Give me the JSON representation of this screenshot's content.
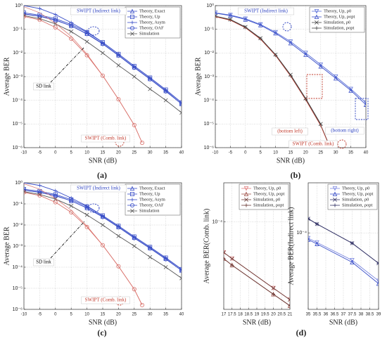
{
  "chart_data": [
    {
      "type": "line",
      "caption": "(a)",
      "xlabel": "SNR (dB)",
      "ylabel": "Average BER",
      "ylog": true,
      "grid": true,
      "legend": "upper right",
      "xlim": [
        -10,
        40
      ],
      "xticks": [
        -10,
        -5,
        0,
        5,
        10,
        15,
        20,
        25,
        30,
        35,
        40
      ],
      "ylim": [
        1e-06,
        1
      ],
      "yticks": [
        {
          "value": 1,
          "label": "10⁰"
        },
        {
          "value": 0.1,
          "label": "10⁻¹"
        },
        {
          "value": 0.01,
          "label": "10⁻²"
        },
        {
          "value": 0.001,
          "label": "10⁻³"
        },
        {
          "value": 0.0001,
          "label": "10⁻⁴"
        },
        {
          "value": 1e-05,
          "label": "10⁻⁵"
        },
        {
          "value": 1e-06,
          "label": "10⁻⁶"
        }
      ],
      "annotations": [
        {
          "text": "SWIPT (Indirect link)",
          "color": "#2a3fbf"
        },
        {
          "text": "SD link",
          "color": "#000000"
        },
        {
          "text": "SWIPT (Comb. link)",
          "color": "#c0392b"
        }
      ],
      "series": [
        {
          "name": "Theory, Exact",
          "color": "#3a4fc8",
          "marker": "triangle-up",
          "x": [
            -10,
            -5,
            0,
            5,
            10,
            15,
            20,
            25,
            30,
            35,
            40
          ],
          "values": [
            0.45,
            0.36,
            0.25,
            0.14,
            0.065,
            0.025,
            0.008,
            0.0025,
            0.0008,
            0.00025,
            7e-05
          ]
        },
        {
          "name": "Theory, Up",
          "color": "#3a4fc8",
          "marker": "square",
          "x": [
            -10,
            -5,
            0,
            5,
            10,
            15,
            20,
            25,
            30,
            35,
            40
          ],
          "values": [
            0.5,
            0.4,
            0.28,
            0.16,
            0.075,
            0.028,
            0.009,
            0.0028,
            0.0009,
            0.00028,
            8e-05
          ]
        },
        {
          "name": "Theory, Asym",
          "color": "#3a4fc8",
          "marker": "plus",
          "x": [
            -10,
            -5,
            0,
            5,
            10,
            15,
            20,
            25,
            30,
            35,
            40
          ],
          "values": [
            1,
            0.75,
            0.42,
            0.19,
            0.08,
            0.028,
            0.009,
            0.0028,
            0.0009,
            0.00028,
            8e-05
          ]
        },
        {
          "name": "Theory, OAF",
          "color": "#3a4fc8",
          "marker": "circle",
          "x": [
            -10,
            -5,
            0,
            5,
            10,
            15,
            20,
            25,
            30,
            35,
            40
          ],
          "values": [
            0.44,
            0.35,
            0.24,
            0.14,
            0.063,
            0.024,
            0.0078,
            0.0024,
            0.00078,
            0.00024,
            7e-05
          ]
        },
        {
          "name": "Simulation",
          "color": "#555555",
          "marker": "x",
          "x": [
            -10,
            -5,
            0,
            5,
            10,
            15,
            20,
            25,
            30,
            35,
            40
          ],
          "values": [
            0.38,
            0.28,
            0.17,
            0.08,
            0.03,
            0.01,
            0.003,
            0.001,
            0.0003,
            0.0001,
            3e-05
          ]
        },
        {
          "color": "#d9706a",
          "marker": "circle",
          "x": [
            -10,
            -5,
            0,
            5,
            10,
            15,
            20,
            25,
            27.5
          ],
          "values": [
            0.35,
            0.25,
            0.12,
            0.04,
            0.008,
            0.0011,
            0.00011,
            9e-06,
            1.6e-06
          ]
        },
        {
          "color": "#d9706a",
          "marker": "none",
          "x": [
            -10,
            -5,
            0,
            5,
            10,
            15,
            20,
            25,
            27.5
          ],
          "values": [
            0.9,
            0.5,
            0.18,
            0.05,
            0.009,
            0.0011,
            0.00011,
            9e-06,
            1.6e-06
          ]
        }
      ]
    },
    {
      "type": "line",
      "caption": "(b)",
      "xlabel": "SNR (dB)",
      "ylabel": "Average BER",
      "ylog": true,
      "grid": true,
      "legend": "upper right",
      "xlim": [
        -10,
        40
      ],
      "xticks": [
        -10,
        -5,
        0,
        5,
        10,
        15,
        20,
        25,
        30,
        35,
        40
      ],
      "ylim": [
        1e-06,
        1
      ],
      "yticks": [
        {
          "value": 1,
          "label": "10⁰"
        },
        {
          "value": 0.1,
          "label": "10⁻¹"
        },
        {
          "value": 0.01,
          "label": "10⁻²"
        },
        {
          "value": 0.001,
          "label": "10⁻³"
        },
        {
          "value": 0.0001,
          "label": "10⁻⁴"
        },
        {
          "value": 1e-05,
          "label": "10⁻⁵"
        },
        {
          "value": 1e-06,
          "label": "10⁻⁶"
        }
      ],
      "annotations": [
        {
          "text": "SWIPT (Indirect link)",
          "color": "#2a3fbf"
        },
        {
          "text": "SWIPT (Comb. link)",
          "color": "#c0392b"
        },
        {
          "text": "(bottom left)",
          "color": "#c0392b"
        },
        {
          "text": "(bottom right)",
          "color": "#2a3fbf"
        }
      ],
      "series": [
        {
          "name": "Theory, Up, ρ0",
          "color": "#5a6fd8",
          "marker": "triangle-down",
          "x": [
            -10,
            -5,
            0,
            5,
            10,
            15,
            20,
            25,
            30,
            35,
            40
          ],
          "values": [
            0.5,
            0.4,
            0.28,
            0.16,
            0.075,
            0.03,
            0.01,
            0.0032,
            0.001,
            0.0003,
            8e-05
          ]
        },
        {
          "name": "Theory, Up, ρopt",
          "color": "#3a4fc8",
          "marker": "triangle-up",
          "x": [
            -10,
            -5,
            0,
            5,
            10,
            15,
            20,
            25,
            30,
            35,
            40
          ],
          "values": [
            0.48,
            0.38,
            0.26,
            0.15,
            0.068,
            0.026,
            0.0085,
            0.0027,
            0.00085,
            0.00026,
            6.5e-05
          ]
        },
        {
          "name": "Simulation, ρ0",
          "color": "#444444",
          "marker": "x",
          "x": [
            -10,
            -5,
            0,
            5,
            10,
            15,
            20,
            25
          ],
          "values": [
            0.36,
            0.26,
            0.125,
            0.042,
            0.0085,
            0.0012,
            0.00012,
            1e-05
          ]
        },
        {
          "name": "Simulation, ρopt",
          "color": "#444444",
          "marker": "plus",
          "x": [
            -10,
            -5,
            0,
            5,
            10,
            15,
            20,
            25,
            27.5
          ],
          "values": [
            0.35,
            0.25,
            0.12,
            0.04,
            0.008,
            0.0011,
            0.00011,
            9e-06,
            1.6e-06
          ]
        },
        {
          "color": "#c0392b",
          "marker": "none",
          "x": [
            -10,
            -5,
            0,
            5,
            10,
            15,
            20,
            25,
            27.5
          ],
          "values": [
            0.34,
            0.24,
            0.115,
            0.038,
            0.0078,
            0.00105,
            0.000105,
            8.5e-06,
            1.5e-06
          ]
        }
      ]
    },
    {
      "type": "line",
      "caption": "(c)",
      "xlabel": "SNR (dB)",
      "ylabel": "Average BER",
      "ylog": true,
      "grid": true,
      "legend": "upper right",
      "xlim": [
        -10,
        40
      ],
      "xticks": [
        -10,
        -5,
        0,
        5,
        10,
        15,
        20,
        25,
        30,
        35,
        40
      ],
      "ylim": [
        1e-06,
        1
      ],
      "yticks": [
        {
          "value": 1,
          "label": "10⁰"
        },
        {
          "value": 0.1,
          "label": "10⁻¹"
        },
        {
          "value": 0.01,
          "label": "10⁻²"
        },
        {
          "value": 0.001,
          "label": "10⁻³"
        },
        {
          "value": 0.0001,
          "label": "10⁻⁴"
        },
        {
          "value": 1e-05,
          "label": "10⁻⁵"
        },
        {
          "value": 1e-06,
          "label": "10⁻⁶"
        }
      ],
      "annotations": [
        {
          "text": "SWIPT (Indirect link)",
          "color": "#2a3fbf"
        },
        {
          "text": "SD link",
          "color": "#000000"
        },
        {
          "text": "SWIPT (Comb. link)",
          "color": "#c0392b"
        }
      ],
      "series": [
        {
          "name": "Theory, Exact",
          "color": "#3a4fc8",
          "marker": "triangle-up",
          "x": [
            -10,
            -5,
            0,
            5,
            10,
            15,
            20,
            25,
            30,
            35,
            40
          ],
          "values": [
            0.45,
            0.36,
            0.25,
            0.14,
            0.065,
            0.025,
            0.008,
            0.0025,
            0.0008,
            0.00025,
            7e-05
          ]
        },
        {
          "name": "Theory, Up",
          "color": "#3a4fc8",
          "marker": "square",
          "x": [
            -10,
            -5,
            0,
            5,
            10,
            15,
            20,
            25,
            30,
            35,
            40
          ],
          "values": [
            0.5,
            0.4,
            0.28,
            0.16,
            0.075,
            0.028,
            0.009,
            0.0028,
            0.0009,
            0.00028,
            8e-05
          ]
        },
        {
          "name": "Theory, Asym",
          "color": "#3a4fc8",
          "marker": "plus",
          "x": [
            -10,
            -5,
            0,
            5,
            10,
            15,
            20,
            25,
            30,
            35,
            40
          ],
          "values": [
            1,
            0.75,
            0.42,
            0.19,
            0.08,
            0.028,
            0.009,
            0.0028,
            0.0009,
            0.00028,
            8e-05
          ]
        },
        {
          "name": "Theory, OAF",
          "color": "#3a4fc8",
          "marker": "circle",
          "x": [
            -10,
            -5,
            0,
            5,
            10,
            15,
            20,
            25,
            30,
            35,
            40
          ],
          "values": [
            0.44,
            0.35,
            0.24,
            0.14,
            0.063,
            0.024,
            0.0078,
            0.0024,
            0.00078,
            0.00024,
            7e-05
          ]
        },
        {
          "name": "Simulation",
          "color": "#555555",
          "marker": "x",
          "x": [
            -10,
            -5,
            0,
            5,
            10,
            15,
            20,
            25,
            30,
            35,
            40
          ],
          "values": [
            0.38,
            0.28,
            0.17,
            0.08,
            0.03,
            0.01,
            0.003,
            0.001,
            0.0003,
            0.0001,
            3e-05
          ]
        },
        {
          "color": "#d9706a",
          "marker": "circle",
          "x": [
            -10,
            -5,
            0,
            5,
            10,
            15,
            20,
            25,
            27.5
          ],
          "values": [
            0.35,
            0.25,
            0.12,
            0.04,
            0.008,
            0.0011,
            0.00011,
            9e-06,
            1.6e-06
          ]
        },
        {
          "color": "#d9706a",
          "marker": "none",
          "x": [
            -10,
            -5,
            0,
            5,
            10,
            15,
            20,
            25,
            27.5
          ],
          "values": [
            0.9,
            0.5,
            0.18,
            0.05,
            0.009,
            0.0011,
            0.00011,
            9e-06,
            1.6e-06
          ]
        }
      ]
    },
    {
      "type": "line",
      "caption": "(d)",
      "xlabel": "SNR (dB)",
      "ylabel": "Average BER(Comb. link)",
      "ylog": true,
      "grid": true,
      "legend": "upper right",
      "xlim": [
        17,
        21
      ],
      "xticks": [
        17,
        17.5,
        18,
        18.5,
        19,
        19.5,
        20,
        20.5,
        21
      ],
      "ylim": [
        1e-05,
        0.00028
      ],
      "yticks": [
        {
          "value": 0.0001,
          "label": "10⁻⁴"
        }
      ],
      "series": [
        {
          "name": "Theory, Up, ρ0",
          "color": "#e07a7a",
          "marker": "triangle-down",
          "x": [
            17,
            17.5,
            20,
            21
          ],
          "values": [
            4.47e-05,
            3.8e-05,
            1.75e-05,
            1.29e-05
          ]
        },
        {
          "name": "Theory, Up, ρopt",
          "color": "#a0524a",
          "marker": "triangle-up",
          "x": [
            17,
            17.5,
            20,
            21
          ],
          "values": [
            3.8e-05,
            3.2e-05,
            1.49e-05,
            1.1e-05
          ]
        },
        {
          "name": "Simulation, ρ0",
          "color": "#6b3a36",
          "marker": "x",
          "x": [
            17,
            17.5,
            20,
            21
          ],
          "values": [
            4.47e-05,
            3.8e-05,
            1.75e-05,
            1.29e-05
          ]
        },
        {
          "name": "Simulation, ρopt",
          "color": "#6b3a36",
          "marker": "plus",
          "x": [
            17,
            17.5,
            20,
            21
          ],
          "values": [
            3.8e-05,
            3.2e-05,
            1.49e-05,
            1.1e-05
          ]
        }
      ]
    },
    {
      "type": "line",
      "xlabel": "SNR (dB)",
      "ylabel": "Average BER(Indirect link)",
      "ylog": true,
      "grid": true,
      "legend": "upper right",
      "xlim": [
        35,
        39
      ],
      "xticks": [
        35,
        35.5,
        36,
        36.5,
        37,
        37.5,
        38,
        38.5,
        39
      ],
      "ylim": [
        3e-05,
        0.00022
      ],
      "yticks": [
        {
          "value": 0.0001,
          "label": "10⁻⁴"
        }
      ],
      "series": [
        {
          "name": "Theory, Up, ρ0",
          "color": "#7a86e0",
          "marker": "triangle-down",
          "x": [
            35,
            35.5,
            37.5,
            39
          ],
          "values": [
            9.2e-05,
            8.6e-05,
            6.5e-05,
            4.7e-05
          ]
        },
        {
          "name": "Theory, Up, ρopt",
          "color": "#3a4fc8",
          "marker": "triangle-up",
          "x": [
            35,
            35.5,
            37.5,
            39
          ],
          "values": [
            9e-05,
            8.4e-05,
            6.3e-05,
            4.5e-05
          ]
        },
        {
          "name": "Simulation, ρ0",
          "color": "#333366",
          "marker": "x",
          "x": [
            35,
            35.5,
            37.5,
            39
          ],
          "values": [
            0.000125,
            0.000115,
            8.5e-05,
            6.2e-05
          ]
        },
        {
          "name": "Simulation, ρopt",
          "color": "#333366",
          "marker": "plus",
          "x": [
            35,
            35.5,
            37.5,
            39
          ],
          "values": [
            0.000125,
            0.000115,
            8.5e-05,
            6.2e-05
          ]
        }
      ]
    }
  ]
}
